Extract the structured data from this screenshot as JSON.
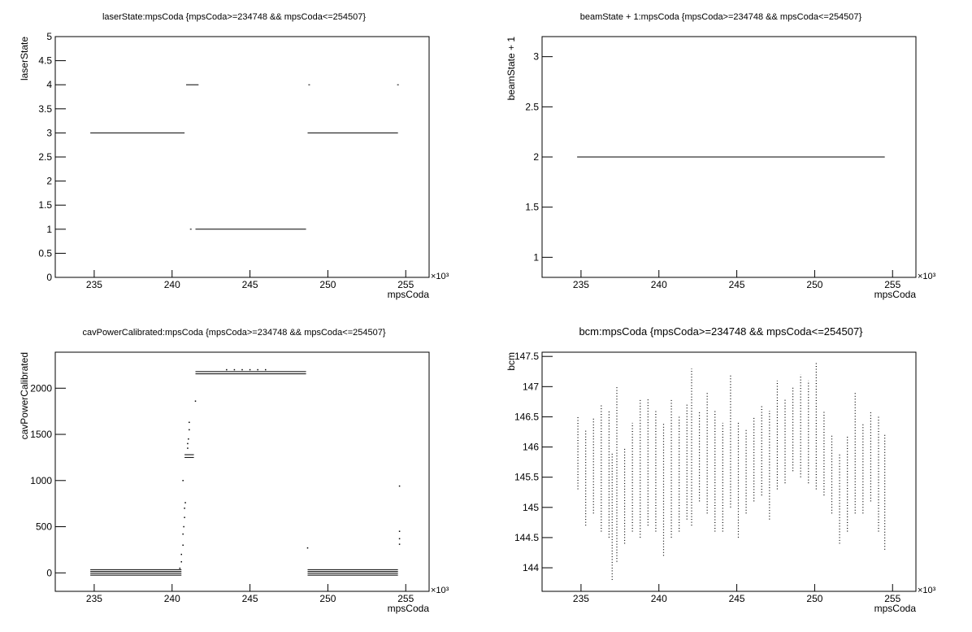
{
  "chart_data": [
    {
      "type": "line",
      "title": "laserState:mpsCoda {mpsCoda>=234748 && mpsCoda<=254507}",
      "x_label": "mpsCoda",
      "y_label": "laserState",
      "x_multiplier": "×10³",
      "xlim": [
        232.5,
        256.5
      ],
      "xticks": [
        235,
        240,
        245,
        250,
        255
      ],
      "ylim": [
        0,
        5
      ],
      "yticks": [
        0,
        0.5,
        1,
        1.5,
        2,
        2.5,
        3,
        3.5,
        4,
        4.5,
        5
      ],
      "color": "#000000",
      "series": [
        {
          "x": [
            234.75,
            240.8,
            null,
            240.9,
            241.7,
            null,
            241.2,
            null,
            241.5,
            248.6,
            null,
            248.7,
            254.5,
            null,
            248.8,
            null,
            254.5
          ],
          "values": [
            3,
            3,
            null,
            4,
            4,
            null,
            1,
            null,
            1,
            1,
            null,
            3,
            3,
            null,
            4,
            null,
            4
          ]
        }
      ]
    },
    {
      "type": "line",
      "title": "beamState + 1:mpsCoda {mpsCoda>=234748 && mpsCoda<=254507}",
      "x_label": "mpsCoda",
      "y_label": "beamState + 1",
      "x_multiplier": "×10³",
      "xlim": [
        232.5,
        256.5
      ],
      "xticks": [
        235,
        240,
        245,
        250,
        255
      ],
      "ylim": [
        0.8,
        3.2
      ],
      "yticks": [
        1,
        1.5,
        2,
        2.5,
        3
      ],
      "color": "#000000",
      "series": [
        {
          "x": [
            234.75,
            254.5
          ],
          "values": [
            2,
            2
          ]
        }
      ]
    },
    {
      "type": "scatter",
      "title": "cavPowerCalibrated:mpsCoda {mpsCoda>=234748 && mpsCoda<=254507}",
      "x_label": "mpsCoda",
      "y_label": "cavPowerCalibrated",
      "x_multiplier": "×10³",
      "xlim": [
        232.5,
        256.5
      ],
      "xticks": [
        235,
        240,
        245,
        250,
        255
      ],
      "ylim": [
        -200,
        2390
      ],
      "yticks": [
        0,
        500,
        1000,
        1500,
        2000
      ],
      "color": "#000000",
      "series": [
        {
          "style": "line",
          "x": [
            234.75,
            240.6,
            null,
            234.75,
            240.6,
            null,
            234.75,
            240.6,
            null,
            234.75,
            240.6,
            null,
            248.7,
            254.5,
            null,
            248.7,
            254.5,
            null,
            248.7,
            254.5,
            null,
            248.7,
            254.5,
            null,
            241.5,
            248.6,
            null,
            241.5,
            248.6,
            null,
            240.8,
            241.4,
            null,
            240.8,
            241.4
          ],
          "values": [
            35,
            35,
            null,
            15,
            15,
            null,
            -5,
            -5,
            null,
            -25,
            -25,
            null,
            35,
            35,
            null,
            15,
            15,
            null,
            -5,
            -5,
            null,
            -25,
            -25,
            null,
            2180,
            2180,
            null,
            2155,
            2155,
            null,
            1280,
            1280,
            null,
            1250,
            1250
          ]
        },
        {
          "style": "point",
          "x": [
            240.5,
            240.6,
            240.6,
            240.7,
            240.7,
            240.75,
            240.8,
            240.8,
            240.85,
            240.7,
            241.0,
            241.05,
            241.1,
            241.1,
            241.0,
            241.5,
            243.5,
            244.0,
            244.5,
            245.0,
            245.5,
            246.0,
            248.7,
            254.6,
            254.6,
            254.6,
            254.6
          ],
          "values": [
            50,
            120,
            200,
            300,
            420,
            500,
            600,
            700,
            760,
            1000,
            1350,
            1450,
            1550,
            1630,
            1400,
            1860,
            2200,
            2200,
            2200,
            2200,
            2200,
            2200,
            270,
            940,
            450,
            370,
            310
          ]
        }
      ]
    },
    {
      "type": "range",
      "title": "bcm:mpsCoda {mpsCoda>=234748 && mpsCoda<=254507}",
      "x_label": "mpsCoda",
      "y_label": "bcm",
      "x_multiplier": "×10³",
      "xlim": [
        232.5,
        256.5
      ],
      "xticks": [
        235,
        240,
        245,
        250,
        255
      ],
      "ylim": [
        143.61,
        147.57
      ],
      "yticks": [
        144,
        144.5,
        145,
        145.5,
        146,
        146.5,
        147,
        147.5
      ],
      "color": "#000000",
      "series": [
        {
          "x": [
            234.8,
            235.3,
            235.8,
            236.3,
            236.8,
            237.0,
            237.3,
            237.8,
            238.3,
            238.8,
            239.3,
            239.8,
            240.3,
            240.8,
            241.3,
            241.8,
            242.1,
            242.6,
            243.1,
            243.6,
            244.1,
            244.6,
            245.1,
            245.6,
            246.1,
            246.6,
            247.1,
            247.6,
            248.1,
            248.6,
            249.1,
            249.6,
            250.1,
            250.6,
            251.1,
            251.6,
            252.1,
            252.6,
            253.1,
            253.6,
            254.1,
            254.5
          ],
          "low": [
            145.3,
            144.7,
            144.9,
            144.6,
            144.5,
            143.8,
            144.1,
            144.4,
            144.6,
            144.5,
            144.7,
            144.6,
            144.2,
            144.5,
            144.6,
            144.8,
            144.7,
            145.1,
            144.9,
            144.6,
            144.6,
            145.0,
            144.5,
            144.9,
            145.1,
            145.2,
            144.8,
            145.3,
            145.4,
            145.6,
            145.5,
            145.4,
            145.3,
            145.2,
            144.9,
            144.4,
            144.6,
            144.9,
            144.9,
            145.1,
            144.6,
            144.3
          ],
          "high": [
            146.5,
            146.3,
            146.5,
            146.7,
            146.6,
            145.9,
            147.0,
            146.0,
            146.4,
            146.8,
            146.8,
            146.6,
            146.4,
            146.8,
            146.5,
            146.7,
            147.3,
            146.6,
            146.9,
            146.6,
            146.4,
            147.2,
            146.4,
            146.3,
            146.5,
            146.7,
            146.6,
            147.1,
            146.8,
            147.0,
            147.2,
            147.1,
            147.4,
            146.6,
            146.2,
            145.9,
            146.2,
            146.9,
            146.4,
            146.6,
            146.5,
            146.2
          ]
        }
      ]
    }
  ]
}
